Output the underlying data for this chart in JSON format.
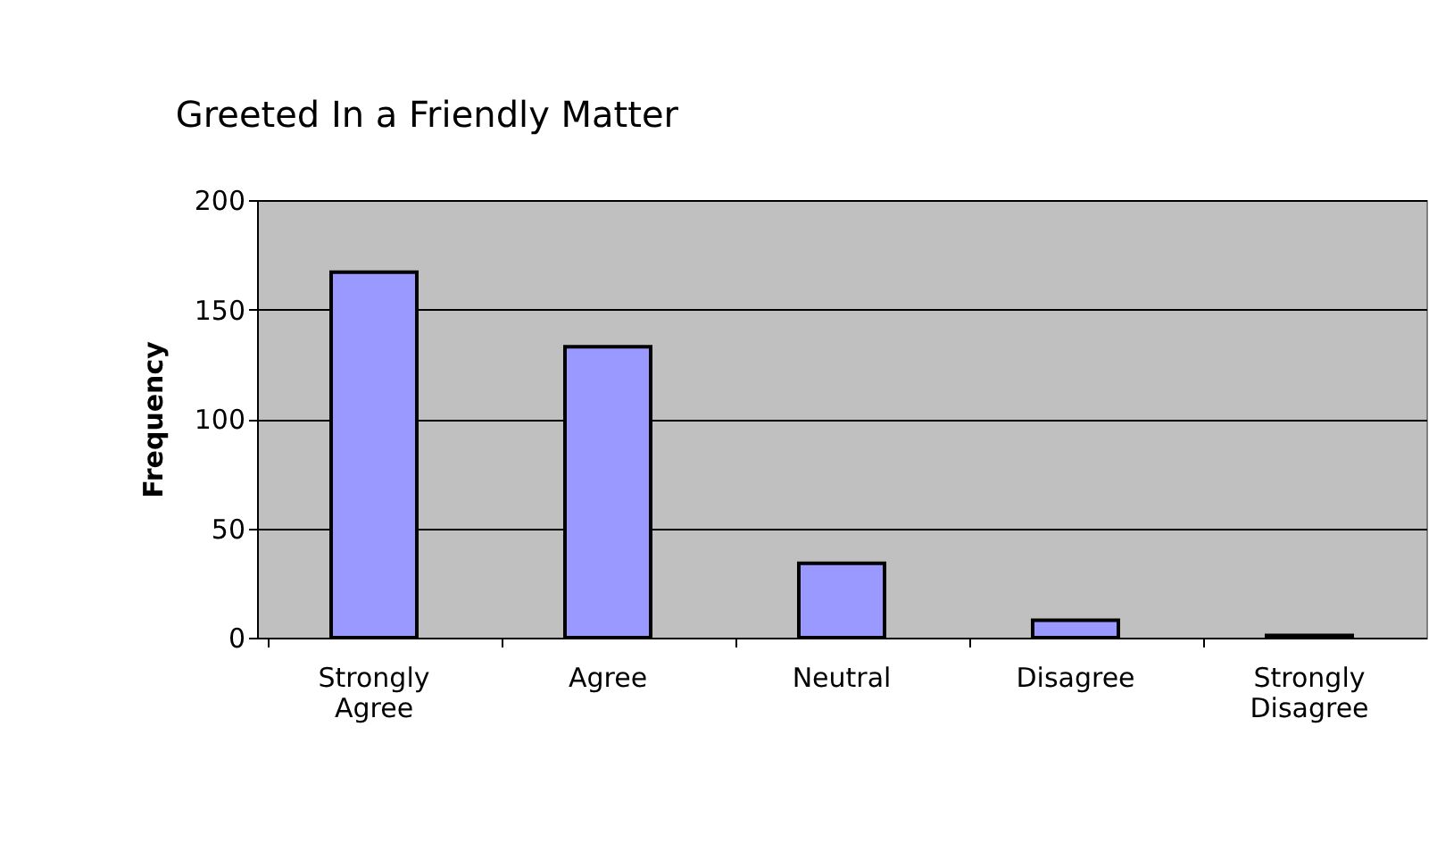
{
  "chart_data": {
    "type": "bar",
    "title": "Greeted In a Friendly Matter",
    "ylabel": "Frequency",
    "categories": [
      "Strongly Agree",
      "Agree",
      "Neutral",
      "Disagree",
      "Strongly Disagree"
    ],
    "values": [
      167,
      133,
      34,
      8,
      1
    ],
    "color": "#9999ff",
    "ylim": [
      0,
      200
    ],
    "yticks": [
      0,
      50,
      100,
      150,
      200
    ],
    "grid": "y"
  }
}
